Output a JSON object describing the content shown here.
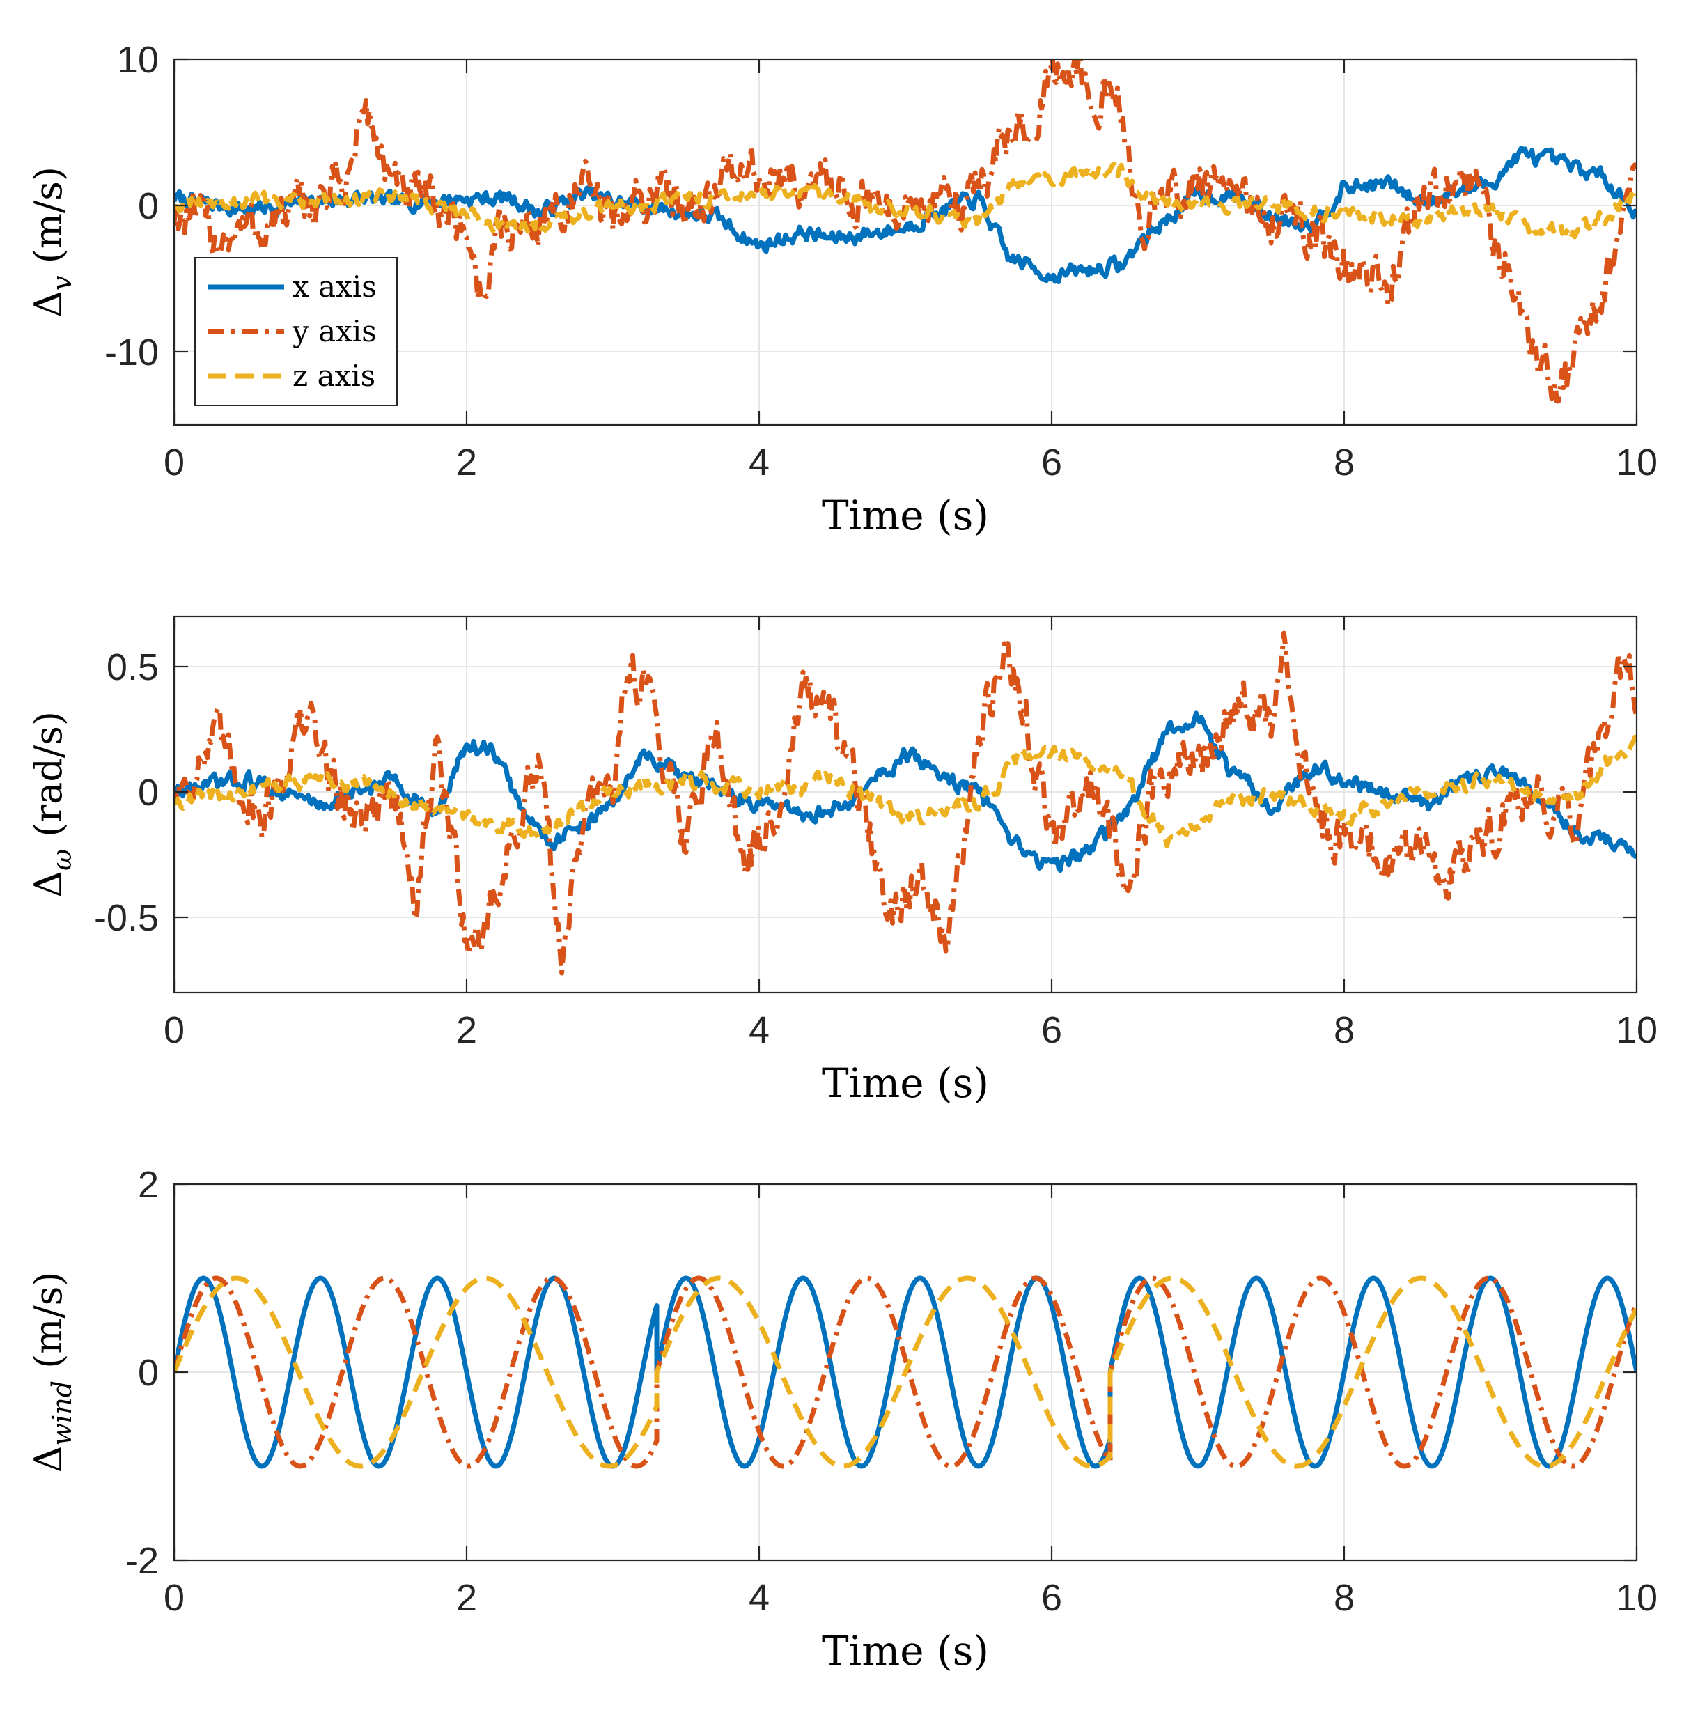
{
  "chart_data": [
    {
      "type": "line",
      "xlabel": "Time (s)",
      "ylabel": {
        "base": "Δ",
        "sub": "v",
        "rest": " (m/s)"
      },
      "xlim": [
        0,
        10
      ],
      "ylim": [
        -15,
        10
      ],
      "xticks": [
        "0",
        "2",
        "4",
        "6",
        "8",
        "10"
      ],
      "yticks": [
        {
          "v": 10,
          "label": "10"
        },
        {
          "v": 0,
          "label": "0"
        },
        {
          "v": -10,
          "label": "-10"
        }
      ],
      "grid": true,
      "legend": {
        "placement": "bottom-left",
        "entries": [
          "x axis",
          "y axis",
          "z axis"
        ]
      },
      "series": [
        {
          "name": "x axis",
          "color": "#0072BD",
          "style": "solid",
          "x": [
            0,
            0.5,
            1,
            1.3,
            1.5,
            2,
            2.3,
            2.5,
            2.8,
            3,
            3.5,
            3.7,
            4,
            4.3,
            4.5,
            5,
            5.2,
            5.5,
            5.7,
            6,
            6.2,
            6.5,
            6.6,
            7,
            7.3,
            7.5,
            7.8,
            8,
            8.3,
            8.5,
            9,
            9.2,
            9.5,
            9.8,
            10
          ],
          "y": [
            0.5,
            -0.3,
            0.3,
            0.5,
            0.2,
            0.5,
            0.5,
            -0.5,
            0.8,
            0.3,
            -0.5,
            -0.8,
            -2.8,
            -1.8,
            -2.3,
            -1.5,
            -0.5,
            0.5,
            -3.5,
            -4.8,
            -4.5,
            -4,
            -2.5,
            0.8,
            0.5,
            -0.8,
            -1.2,
            1.2,
            1.5,
            0.3,
            1.5,
            3.5,
            2.8,
            1.8,
            -0.5
          ]
        },
        {
          "name": "y axis",
          "color": "#D95319",
          "style": "dashdot",
          "x": [
            0,
            0.3,
            0.6,
            1,
            1.2,
            1.3,
            1.5,
            1.8,
            2,
            2.1,
            2.2,
            2.5,
            2.8,
            3,
            3.3,
            3.6,
            3.9,
            4.2,
            4.5,
            4.8,
            5,
            5.3,
            5.5,
            5.7,
            5.9,
            6.1,
            6.3,
            6.45,
            6.6,
            6.8,
            7,
            7.3,
            7.5,
            7.7,
            7.9,
            8.1,
            8.3,
            8.5,
            8.7,
            8.9,
            9.1,
            9.25,
            9.35,
            9.5,
            9.7,
            9.9,
            10
          ],
          "y": [
            -0.5,
            -2,
            -1.5,
            0.5,
            2,
            7,
            1,
            0,
            -1.5,
            -6.5,
            -2,
            -1,
            1,
            -1,
            1,
            0.5,
            2.5,
            1.5,
            1.5,
            0,
            0,
            0,
            1.5,
            4.5,
            7,
            9.5,
            8,
            6.5,
            -1,
            0.5,
            1.5,
            0,
            -0.5,
            -1,
            -3.5,
            -5,
            -5.5,
            0,
            1.5,
            1.5,
            -4,
            -8,
            -11,
            -12,
            -7,
            -2,
            2.5
          ]
        },
        {
          "name": "z axis",
          "color": "#EDB120",
          "style": "dashed",
          "x": [
            0,
            1,
            1.5,
            2,
            2.3,
            2.8,
            3.5,
            4,
            4.5,
            5,
            5.5,
            5.7,
            6,
            6.5,
            6.6,
            7,
            7.5,
            8,
            8.5,
            9,
            9.3,
            9.6,
            10
          ],
          "y": [
            0,
            0.5,
            0.5,
            -0.5,
            -1.5,
            -0.5,
            0.5,
            0.8,
            0.5,
            -0.3,
            -1,
            1,
            2,
            2.5,
            0.5,
            0,
            0,
            -0.5,
            -1,
            0,
            -1.8,
            -2,
            0.8
          ]
        }
      ]
    },
    {
      "type": "line",
      "xlabel": "Time (s)",
      "ylabel": {
        "base": "Δ",
        "sub": "ω",
        "rest": " (rad/s)"
      },
      "xlim": [
        0,
        10
      ],
      "ylim": [
        -0.8,
        0.7
      ],
      "xticks": [
        "0",
        "2",
        "4",
        "6",
        "8",
        "10"
      ],
      "yticks": [
        {
          "v": 0.5,
          "label": "0.5"
        },
        {
          "v": 0,
          "label": "0"
        },
        {
          "v": -0.5,
          "label": "-0.5"
        }
      ],
      "grid": true,
      "series": [
        {
          "name": "x axis",
          "color": "#0072BD",
          "style": "solid",
          "x": [
            0,
            0.5,
            1,
            1.5,
            1.8,
            2,
            2.2,
            2.4,
            2.6,
            3,
            3.2,
            3.5,
            3.8,
            4,
            4.3,
            4.6,
            5,
            5.3,
            5.5,
            5.7,
            6,
            6.2,
            6.5,
            6.8,
            7,
            7.2,
            7.5,
            7.8,
            8,
            8.3,
            8.6,
            9,
            9.3,
            9.6,
            9.8,
            10
          ],
          "y": [
            0,
            0.05,
            -0.05,
            0.05,
            -0.1,
            0.2,
            0.15,
            -0.1,
            -0.2,
            -0.05,
            0.15,
            0.05,
            0,
            -0.05,
            -0.1,
            -0.05,
            0.15,
            0.05,
            0,
            -0.2,
            -0.3,
            -0.25,
            -0.1,
            0.25,
            0.3,
            0.1,
            -0.05,
            0.1,
            0.05,
            0,
            -0.05,
            0.1,
            0,
            -0.15,
            -0.2,
            -0.25
          ]
        },
        {
          "name": "y axis",
          "color": "#D95319",
          "style": "dashdot",
          "x": [
            0,
            0.3,
            0.6,
            0.9,
            1.2,
            1.5,
            1.65,
            1.8,
            2,
            2.1,
            2.3,
            2.5,
            2.65,
            2.8,
            3,
            3.1,
            3.3,
            3.5,
            3.7,
            3.9,
            4.1,
            4.3,
            4.5,
            4.7,
            4.9,
            5.1,
            5.3,
            5.5,
            5.7,
            5.85,
            6,
            6.3,
            6.5,
            6.7,
            6.9,
            7.1,
            7.3,
            7.5,
            7.6,
            7.7,
            7.9,
            8.1,
            8.3,
            8.5,
            8.7,
            9,
            9.3,
            9.6,
            9.8,
            9.95,
            10
          ],
          "y": [
            0,
            0.2,
            -0.1,
            0.3,
            -0.1,
            0,
            -0.45,
            0.15,
            -0.55,
            -0.6,
            -0.2,
            0.1,
            -0.65,
            -0.1,
            0,
            0.55,
            0.3,
            -0.2,
            0.3,
            -0.3,
            -0.1,
            0.4,
            0.25,
            -0.05,
            -0.5,
            -0.3,
            -0.55,
            0.2,
            0.6,
            0.2,
            -0.2,
            0.05,
            -0.35,
            0,
            0.1,
            0.15,
            0.4,
            0.25,
            0.55,
            0.1,
            -0.2,
            -0.15,
            -0.3,
            -0.2,
            -0.35,
            -0.15,
            0,
            -0.1,
            0.3,
            0.6,
            0.3
          ]
        },
        {
          "name": "z axis",
          "color": "#EDB120",
          "style": "dashed",
          "x": [
            0,
            0.5,
            1,
            1.5,
            2,
            2.5,
            3,
            3.5,
            4,
            4.5,
            5,
            5.5,
            5.8,
            6.2,
            6.5,
            6.8,
            7.2,
            7.5,
            8,
            8.5,
            9,
            9.5,
            10
          ],
          "y": [
            -0.03,
            0,
            0.05,
            0,
            -0.1,
            -0.15,
            0,
            0.05,
            0,
            0.05,
            -0.1,
            -0.05,
            0.15,
            0.15,
            0.05,
            -0.2,
            -0.05,
            0,
            -0.1,
            0,
            0.05,
            -0.05,
            0.2
          ]
        }
      ]
    },
    {
      "type": "line",
      "xlabel": "Time (s)",
      "ylabel": {
        "base": "Δ",
        "sub": "wind",
        "rest": " (m/s)"
      },
      "xlim": [
        0,
        10
      ],
      "ylim": [
        -2,
        2
      ],
      "xticks": [
        "0",
        "2",
        "4",
        "6",
        "8",
        "10"
      ],
      "yticks": [
        {
          "v": 2,
          "label": "2"
        },
        {
          "v": 0,
          "label": "0"
        },
        {
          "v": -2,
          "label": "-2"
        }
      ],
      "grid": true,
      "series": [
        {
          "name": "x axis",
          "color": "#0072BD",
          "style": "solid",
          "fn": "sin",
          "amplitude": 1,
          "segments": [
            [
              0,
              3.3,
              0.8
            ],
            [
              3.3,
              6.4,
              0.8
            ],
            [
              6.4,
              10,
              0.8
            ]
          ]
        },
        {
          "name": "y axis",
          "color": "#D95319",
          "style": "dashdot",
          "fn": "sin",
          "amplitude": 1,
          "segments": [
            [
              0,
              3.3,
              1.15
            ],
            [
              3.3,
              6.4,
              1.15
            ],
            [
              6.4,
              10,
              1.15
            ]
          ]
        },
        {
          "name": "z axis",
          "color": "#EDB120",
          "style": "dashed",
          "fn": "sin",
          "amplitude": 1,
          "segments": [
            [
              0,
              3.3,
              1.7
            ],
            [
              3.3,
              6.4,
              1.7
            ],
            [
              6.4,
              10,
              1.7
            ]
          ]
        }
      ]
    }
  ]
}
